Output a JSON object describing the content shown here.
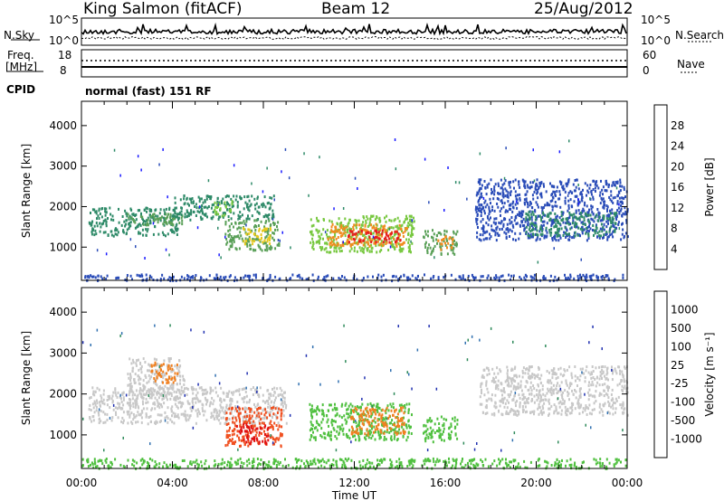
{
  "header": {
    "site": "King Salmon (fitACF)",
    "beam": "Beam 12",
    "date": "25/Aug/2012"
  },
  "params": {
    "nsky_label": "N.Sky",
    "nsky_ticks": [
      "10^5",
      "10^0"
    ],
    "nsearch_label": "N.Search",
    "nsearch_ticks": [
      "10^5",
      "10^0"
    ],
    "freq_label_1": "Freq.",
    "freq_label_2": "[MHz]",
    "freq_ticks": [
      "18",
      "8"
    ],
    "nave_label": "Nave",
    "nave_ticks": [
      "60",
      "0"
    ],
    "cpid_label": "CPID",
    "cpid_value": "normal (fast) 151 RF"
  },
  "colors": {
    "power": [
      "#1a1aff",
      "#2a4cb8",
      "#2e8a68",
      "#5aa058",
      "#78c840",
      "#e6c81e",
      "#f08c1e",
      "#e6501e",
      "#e61e1e"
    ],
    "velocity": [
      "#2030b0",
      "#3070b0",
      "#2e8a5a",
      "#50c040",
      "#c8c8c8",
      "#f0a020",
      "#f08020",
      "#f05020",
      "#e01010"
    ]
  },
  "chart_data": [
    {
      "type": "heatmap",
      "panel": "power",
      "xlabel": "",
      "ylabel": "Slant Range [km]",
      "x_ticks": [
        "00:00",
        "04:00",
        "08:00",
        "12:00",
        "16:00",
        "20:00",
        "00:00"
      ],
      "x_range_hours": [
        0,
        24
      ],
      "y_ticks": [
        1000,
        2000,
        3000,
        4000
      ],
      "ylim": [
        180,
        4600
      ],
      "colorbar_label": "Power [dB]",
      "colorbar_ticks": [
        28,
        24,
        20,
        16,
        12,
        8,
        4
      ],
      "regions": [
        {
          "x": [
            0.3,
            4.3
          ],
          "y": [
            1300,
            2000
          ],
          "level": 2
        },
        {
          "x": [
            2.0,
            4.4
          ],
          "y": [
            1550,
            1850
          ],
          "level": 3
        },
        {
          "x": [
            4.0,
            8.5
          ],
          "y": [
            1700,
            2300
          ],
          "level": 2
        },
        {
          "x": [
            5.8,
            6.6
          ],
          "y": [
            1800,
            2200
          ],
          "level": 4
        },
        {
          "x": [
            6.3,
            8.7
          ],
          "y": [
            950,
            1700
          ],
          "level": 3
        },
        {
          "x": [
            7.0,
            8.3
          ],
          "y": [
            1100,
            1500
          ],
          "level": 5
        },
        {
          "x": [
            10.0,
            14.6
          ],
          "y": [
            900,
            1800
          ],
          "level": 4
        },
        {
          "x": [
            10.8,
            14.3
          ],
          "y": [
            1050,
            1600
          ],
          "level": 6
        },
        {
          "x": [
            11.5,
            14.0
          ],
          "y": [
            1150,
            1450
          ],
          "level": 8
        },
        {
          "x": [
            15.0,
            16.5
          ],
          "y": [
            850,
            1450
          ],
          "level": 3
        },
        {
          "x": [
            15.6,
            16.3
          ],
          "y": [
            950,
            1300
          ],
          "level": 6
        },
        {
          "x": [
            17.3,
            24.0
          ],
          "y": [
            1200,
            2700
          ],
          "level": 1
        },
        {
          "x": [
            19.5,
            23.5
          ],
          "y": [
            1300,
            1900
          ],
          "level": 2
        },
        {
          "x": [
            0.0,
            24.0
          ],
          "y": [
            200,
            350
          ],
          "level": 1
        }
      ]
    },
    {
      "type": "heatmap",
      "panel": "velocity",
      "xlabel": "Time UT",
      "ylabel": "Slant Range [km]",
      "x_ticks": [
        "00:00",
        "04:00",
        "08:00",
        "12:00",
        "16:00",
        "20:00",
        "00:00"
      ],
      "x_range_hours": [
        0,
        24
      ],
      "y_ticks": [
        1000,
        2000,
        3000,
        4000
      ],
      "ylim": [
        180,
        4600
      ],
      "colorbar_label": "Velocity [m s⁻¹]",
      "colorbar_ticks": [
        1000,
        500,
        100,
        25,
        -25,
        -100,
        -500,
        -1000
      ],
      "regions": [
        {
          "x": [
            0.3,
            9.0
          ],
          "y": [
            1300,
            2200
          ],
          "level": 4
        },
        {
          "x": [
            2.0,
            4.5
          ],
          "y": [
            2000,
            2900
          ],
          "level": 4
        },
        {
          "x": [
            3.0,
            4.2
          ],
          "y": [
            2300,
            2800
          ],
          "level": 6
        },
        {
          "x": [
            6.3,
            8.8
          ],
          "y": [
            750,
            1700
          ],
          "level": 7
        },
        {
          "x": [
            6.8,
            8.2
          ],
          "y": [
            800,
            1300
          ],
          "level": 8
        },
        {
          "x": [
            10.0,
            14.5
          ],
          "y": [
            900,
            1800
          ],
          "level": 3
        },
        {
          "x": [
            11.8,
            14.2
          ],
          "y": [
            1000,
            1700
          ],
          "level": 6
        },
        {
          "x": [
            15.0,
            16.5
          ],
          "y": [
            850,
            1500
          ],
          "level": 3
        },
        {
          "x": [
            17.5,
            24.0
          ],
          "y": [
            1500,
            2700
          ],
          "level": 4
        },
        {
          "x": [
            0.0,
            24.0
          ],
          "y": [
            200,
            450
          ],
          "level": 3
        }
      ]
    }
  ]
}
